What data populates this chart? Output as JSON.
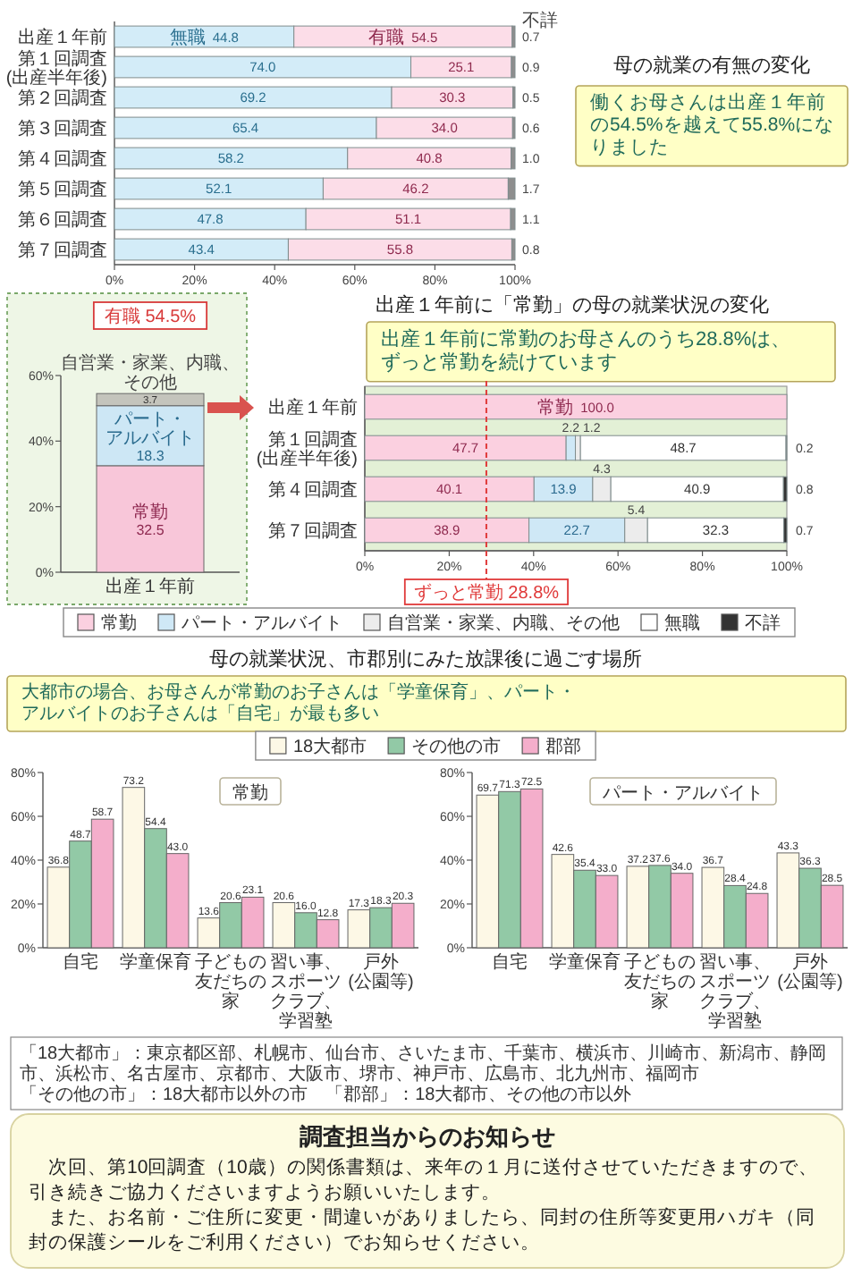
{
  "chart_data": [
    {
      "type": "bar",
      "orientation": "horizontal",
      "stacked": true,
      "categories": [
        "出産１年前",
        "第１回調査(出産半年後)",
        "第２回調査",
        "第３回調査",
        "第４回調査",
        "第５回調査",
        "第６回調査",
        "第７回調査"
      ],
      "series": [
        {
          "name": "無職",
          "color": "#d3ecf8",
          "values": [
            44.8,
            74.0,
            69.2,
            65.4,
            58.2,
            52.1,
            47.8,
            43.4
          ],
          "value_labels": [
            "44.8",
            "74.0",
            "69.2",
            "65.4",
            "58.2",
            "52.1",
            "47.8",
            "43.4"
          ]
        },
        {
          "name": "有職",
          "color": "#fcdde8",
          "values": [
            54.5,
            25.1,
            30.3,
            34.0,
            40.8,
            46.2,
            51.1,
            55.8
          ],
          "value_labels": [
            "54.5",
            "25.1",
            "30.3",
            "34.0",
            "40.8",
            "46.2",
            "51.1",
            "55.8"
          ]
        },
        {
          "name": "不詳",
          "color": "#8e8e8e",
          "values": [
            0.7,
            0.9,
            0.5,
            0.6,
            1.0,
            1.7,
            1.1,
            0.8
          ],
          "value_labels": [
            "0.7",
            "0.9",
            "0.5",
            "0.6",
            "1.0",
            "1.7",
            "1.1",
            "0.8"
          ]
        }
      ],
      "xlim": [
        0,
        100
      ],
      "xticks": [
        {
          "value": 0,
          "label": "0%"
        },
        {
          "value": 20,
          "label": "20%"
        },
        {
          "value": 40,
          "label": "40%"
        },
        {
          "value": 60,
          "label": "60%"
        },
        {
          "value": 80,
          "label": "80%"
        },
        {
          "value": 100,
          "label": "100%"
        }
      ]
    },
    {
      "type": "other",
      "title": "母の就業の有無の変化",
      "subtitle": "働くお母さんは出産１年前の54.5%を越えて55.8%になりました"
    },
    {
      "type": "bar",
      "stacked": true,
      "title": "有職 54.5%",
      "categories": [
        "出産１年前"
      ],
      "series": [
        {
          "name": "常勤",
          "color": "#f8c6d9",
          "values": [
            32.5
          ],
          "value_labels": [
            "32.5"
          ]
        },
        {
          "name": "パート・アルバイト",
          "color": "#cde7f5",
          "values": [
            18.3
          ],
          "value_labels": [
            "18.3"
          ]
        },
        {
          "name": "自営業・家業、内職、その他",
          "color": "#c4c4bc",
          "values": [
            3.7
          ],
          "value_labels": [
            "3.7"
          ]
        }
      ],
      "ylim": [
        0,
        60
      ],
      "yticks": [
        {
          "value": 0,
          "label": "0%"
        },
        {
          "value": 20,
          "label": "20%"
        },
        {
          "value": 40,
          "label": "40%"
        },
        {
          "value": 60,
          "label": "60%"
        }
      ]
    },
    {
      "type": "bar",
      "orientation": "horizontal",
      "stacked": true,
      "title": "出産１年前に「常勤」の母の就業状況の変化",
      "subtitle": "出産１年前に常勤のお母さんのうち28.8%は、ずっと常勤を続けています",
      "categories": [
        "出産１年前",
        "第１回調査(出産半年後)",
        "第４回調査",
        "第７回調査"
      ],
      "series": [
        {
          "name": "常勤",
          "color": "#fbd0e0",
          "values": [
            100.0,
            47.7,
            40.1,
            38.9
          ],
          "value_labels": [
            "100.0",
            "47.7",
            "40.1",
            "38.9"
          ]
        },
        {
          "name": "パート・アルバイト",
          "color": "#cfe8f6",
          "values": [
            null,
            2.2,
            13.9,
            22.7
          ],
          "value_labels": [
            null,
            "2.2",
            "13.9",
            "22.7"
          ]
        },
        {
          "name": "自営業・家業、内職、その他",
          "color": "#ececec",
          "values": [
            null,
            1.2,
            4.3,
            5.4
          ],
          "value_labels": [
            null,
            "1.2",
            "4.3",
            "5.4"
          ]
        },
        {
          "name": "無職",
          "color": "#ffffff",
          "values": [
            null,
            48.7,
            40.9,
            32.3
          ],
          "value_labels": [
            null,
            "48.7",
            "40.9",
            "32.3"
          ]
        },
        {
          "name": "不詳",
          "color": "#333333",
          "values": [
            null,
            0.2,
            0.8,
            0.7
          ],
          "value_labels": [
            null,
            "0.2",
            "0.8",
            "0.7"
          ]
        }
      ],
      "xlim": [
        0,
        100
      ],
      "xticks": [
        {
          "value": 0,
          "label": "0%"
        },
        {
          "value": 20,
          "label": "20%"
        },
        {
          "value": 40,
          "label": "40%"
        },
        {
          "value": 60,
          "label": "60%"
        },
        {
          "value": 80,
          "label": "80%"
        },
        {
          "value": 100,
          "label": "100%"
        }
      ],
      "ref_lines": [
        {
          "axis": "x",
          "value": 28.8,
          "label": "ずっと常勤 28.8%",
          "color": "#e03a3a",
          "line_style": "dashed"
        }
      ],
      "legend": "bottom"
    },
    {
      "type": "bar",
      "title": "母の就業状況、市郡別にみた放課後に過ごす場所",
      "subtitle": "大都市の場合、お母さんが常勤のお子さんは「学童保育」、パート・アルバイトのお子さんは「自宅」が最も多い",
      "annotations": [
        "常勤",
        "「18大都市」：東京都区部、札幌市、仙台市、さいたま市、千葉市、横浜市、川崎市、新潟市、静岡市、浜松市、名古屋市、京都市、大阪市、堺市、神戸市、広島市、北九州市、福岡市",
        "「その他の市」：18大都市以外の市　「郡部」：18大都市、その他の市以外"
      ],
      "categories": [
        "自宅",
        "学童保育",
        "子どもの友だちの家",
        "習い事、スポーツクラブ、学習塾",
        "戸外(公園等)"
      ],
      "series": [
        {
          "name": "18大都市",
          "color": "#fdf8e6",
          "values": [
            36.8,
            73.2,
            13.6,
            20.6,
            17.3
          ],
          "value_labels": [
            "36.8",
            "73.2",
            "13.6",
            "20.6",
            "17.3"
          ]
        },
        {
          "name": "その他の市",
          "color": "#92c9a6",
          "values": [
            48.7,
            54.4,
            20.6,
            16.0,
            18.3
          ],
          "value_labels": [
            "48.7",
            "54.4",
            "20.6",
            "16.0",
            "18.3"
          ]
        },
        {
          "name": "郡部",
          "color": "#f4aecb",
          "values": [
            58.7,
            43.0,
            23.1,
            12.8,
            20.3
          ],
          "value_labels": [
            "58.7",
            "43.0",
            "23.1",
            "12.8",
            "20.3"
          ]
        }
      ],
      "ylim": [
        0,
        80
      ],
      "yticks": [
        {
          "value": 0,
          "label": "0%"
        },
        {
          "value": 20,
          "label": "20%"
        },
        {
          "value": 40,
          "label": "40%"
        },
        {
          "value": 60,
          "label": "60%"
        },
        {
          "value": 80,
          "label": "80%"
        }
      ],
      "legend": "top"
    },
    {
      "type": "bar",
      "annotations": [
        "パート・アルバイト"
      ],
      "categories": [
        "自宅",
        "学童保育",
        "子どもの友だちの家",
        "習い事、スポーツクラブ、学習塾",
        "戸外(公園等)"
      ],
      "series": [
        {
          "color": "#fdf8e6",
          "values": [
            69.7,
            42.6,
            37.2,
            36.7,
            43.3
          ],
          "value_labels": [
            "69.7",
            "42.6",
            "37.2",
            "36.7",
            "43.3"
          ]
        },
        {
          "color": "#92c9a6",
          "values": [
            71.3,
            35.4,
            37.6,
            28.4,
            36.3
          ],
          "value_labels": [
            "71.3",
            "35.4",
            "37.6",
            "28.4",
            "36.3"
          ]
        },
        {
          "color": "#f4aecb",
          "values": [
            72.5,
            33.0,
            34.0,
            24.8,
            28.5
          ],
          "value_labels": [
            "72.5",
            "33.0",
            "34.0",
            "24.8",
            "28.5"
          ]
        }
      ],
      "ylim": [
        0,
        80
      ],
      "yticks": [
        {
          "value": 0,
          "label": "0%"
        },
        {
          "value": 20,
          "label": "20%"
        },
        {
          "value": 40,
          "label": "40%"
        },
        {
          "value": 60,
          "label": "60%"
        },
        {
          "value": 80,
          "label": "80%"
        }
      ]
    },
    {
      "type": "other",
      "title": "調査担当からのお知らせ",
      "annotations": [
        "次回、第10回調査（10歳）の関係書類は、来年の１月に送付させていただきますので、引き続きご協力くださいますようお願いいたします。",
        "また、お名前・ご住所に変更・間違いがありましたら、同封の住所等変更用ハガキ（同封の保護シールをご利用ください）でお知らせください。"
      ]
    }
  ]
}
